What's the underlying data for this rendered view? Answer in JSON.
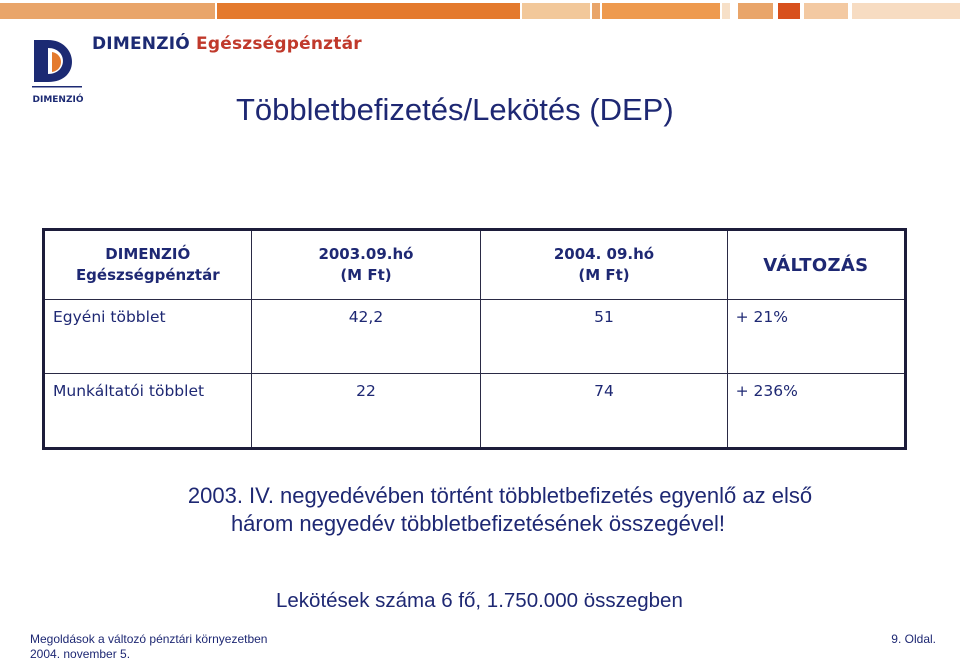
{
  "header": {
    "brand_prefix": "DIMENZIÓ",
    "brand_rest": "Egészségpénztár",
    "logo_caption": "DIMENZIÓ",
    "accent_color": "#e8722c",
    "navy_color": "#1e2873"
  },
  "slide": {
    "title": "Többletbefizetés/Lekötés (DEP)"
  },
  "table": {
    "headers": [
      {
        "line1": "DIMENZIÓ",
        "line2": "Egészségpénztár"
      },
      {
        "line1": "2003.09.hó",
        "line2": "(M Ft)"
      },
      {
        "line1": "2004. 09.hó",
        "line2": "(M Ft)"
      },
      {
        "line1": "VÁLTOZÁS",
        "line2": ""
      }
    ],
    "rows": [
      {
        "label": "Egyéni többlet",
        "v2003": "42,2",
        "v2004": "51",
        "change": "+ 21%"
      },
      {
        "label": "Munkáltatói többlet",
        "v2003": "22",
        "v2004": "74",
        "change": "+ 236%"
      }
    ]
  },
  "note": {
    "line1": "2003. IV. negyedévében történt többletbefizetés egyenlő az első",
    "line2": "három negyedév többletbefizetésének összegével!"
  },
  "summary": "Lekötések száma 6 fő, 1.750.000 összegben",
  "footer": {
    "left_line1": "Megoldások a változó pénztári környezetben",
    "left_line2": "2004. november 5.",
    "page": "9. Oldal."
  }
}
